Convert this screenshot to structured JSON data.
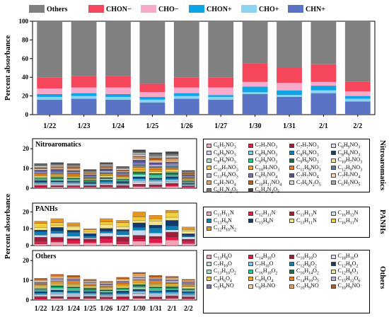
{
  "chart_data": [
    {
      "type": "bar",
      "stacked": true,
      "title": "",
      "ylabel": "Percent absorbance",
      "xlabel": "",
      "ylim": [
        0,
        100
      ],
      "yticks": [
        0,
        20,
        40,
        60,
        80,
        100
      ],
      "grid": false,
      "legend_position": "top",
      "categories": [
        "1/22",
        "1/23",
        "1/24",
        "1/25",
        "1/26",
        "1/27",
        "1/30",
        "1/31",
        "2/1",
        "2/2"
      ],
      "series": [
        {
          "name": "CHN+",
          "color": "#5b73c4",
          "values": [
            16,
            17,
            16,
            13,
            17,
            16,
            22,
            19,
            23,
            14
          ]
        },
        {
          "name": "CHO+",
          "color": "#8ad4f2",
          "values": [
            3,
            3,
            3,
            3,
            3,
            3,
            2,
            2,
            3,
            3
          ]
        },
        {
          "name": "CHON+",
          "color": "#0ea5e6",
          "values": [
            3,
            3,
            3,
            3,
            3,
            2,
            6,
            5,
            5,
            3
          ]
        },
        {
          "name": "CHO−",
          "color": "#f9a9c9",
          "values": [
            6,
            6,
            7,
            5,
            6,
            8,
            5,
            8,
            4,
            5
          ]
        },
        {
          "name": "CHON−",
          "color": "#f5465c",
          "values": [
            12,
            12,
            12,
            9,
            11,
            11,
            20,
            16,
            19,
            10
          ]
        },
        {
          "name": "Others",
          "color": "#808080",
          "values": [
            60,
            59,
            59,
            67,
            60,
            60,
            45,
            50,
            46,
            65
          ]
        }
      ]
    },
    {
      "type": "bar",
      "stacked": true,
      "title": "Nitroaromatics",
      "ylim": [
        0,
        20
      ],
      "yticks": [
        0,
        10,
        20
      ],
      "categories": [
        "1/22",
        "1/23",
        "1/24",
        "1/25",
        "1/26",
        "1/27",
        "1/30",
        "1/31",
        "2/1",
        "2/2"
      ],
      "totals": [
        12.5,
        13,
        12.5,
        9.5,
        13,
        11,
        19.5,
        18,
        18.5,
        9
      ],
      "legend": [
        "C6H5NO3",
        "C7H7NO3",
        "C7H7NO3",
        "C8H9NO3",
        "C8H9NO3",
        "C8H9NO3",
        "C8H9NO3",
        "C8H9NO3",
        "C8H9NO3",
        "C9H9NO3",
        "C9H9NO3",
        "C10H7NO3",
        "C10H7NO3",
        "C10H7NO3",
        "C11H9NO3",
        "C12H9NO3",
        "C13H9NO3",
        "C6H5NO4",
        "C7H7NO4",
        "C7H7NO4",
        "C8H7NO4",
        "C10H11NO4",
        "C7H6N2O5",
        "C6H5NO5",
        "C6H4N2O5",
        "C6H4N2O5"
      ],
      "colors": [
        "#f5a3b5",
        "#e31a4c",
        "#9f1d38",
        "#d9dcf1",
        "#c8d7e8",
        "#7bc8ea",
        "#0c7fb5",
        "#123a6e",
        "#a0e3c4",
        "#1fcb8a",
        "#1b6b46",
        "#f5e38a",
        "#f2d03c",
        "#f1a52b",
        "#e77f1c",
        "#5b7f9c",
        "#bdb6d9",
        "#7c72b6",
        "#57508e",
        "#f7d3b2",
        "#e8a15c",
        "#b75c1d",
        "#d8d8d8",
        "#a8a8a8",
        "#777777",
        "#444444"
      ]
    },
    {
      "type": "bar",
      "stacked": true,
      "title": "PANHs",
      "ylim": [
        0,
        20
      ],
      "yticks": [
        0,
        10,
        20
      ],
      "categories": [
        "1/22",
        "1/23",
        "1/24",
        "1/25",
        "1/26",
        "1/27",
        "1/30",
        "1/31",
        "2/1",
        "2/2"
      ],
      "totals": [
        14.5,
        16,
        13.5,
        10,
        16,
        15,
        20,
        18,
        21,
        11
      ],
      "legend": [
        "C11H11N",
        "C12H11N",
        "C13H13N",
        "C16H13N",
        "C13H9N",
        "C15H9N",
        "C13H11N",
        "C16H11N",
        "C12H10N2"
      ],
      "colors": [
        "#f5a3b5",
        "#e31a4c",
        "#9f1d38",
        "#c7dcee",
        "#0c7fb5",
        "#123a6e",
        "#f5e38a",
        "#f2d03c",
        "#e6931f"
      ]
    },
    {
      "type": "bar",
      "stacked": true,
      "title": "Others",
      "ylim": [
        0,
        20
      ],
      "yticks": [
        0,
        10,
        20
      ],
      "categories": [
        "1/22",
        "1/23",
        "1/24",
        "1/25",
        "1/26",
        "1/27",
        "1/30",
        "1/31",
        "2/1",
        "2/2"
      ],
      "totals": [
        11,
        13,
        12.5,
        10.5,
        9.5,
        11.5,
        14,
        12.5,
        12,
        10.5
      ],
      "legend": [
        "C13H8O",
        "C14H10O",
        "C16H10O",
        "C18H10O",
        "C7H10O",
        "C7H10O",
        "C12H8O2",
        "C12H8O2",
        "C13H10O2",
        "C16H10O2",
        "C16H14O2",
        "C12H8O3",
        "C8H6O4",
        "C9H6O4",
        "C14H10O5",
        "C15H12O6",
        "C5H9NO",
        "C8H7NO",
        "C10H9NO",
        "C10H9NO"
      ],
      "colors": [
        "#f5a3b5",
        "#e31a4c",
        "#9f1d38",
        "#d9dcf1",
        "#c8d7e8",
        "#7bc8ea",
        "#0c7fb5",
        "#123a6e",
        "#a0e3c4",
        "#1fcb8a",
        "#1b6b46",
        "#f5e38a",
        "#f2d03c",
        "#f1a52b",
        "#e77f1c",
        "#bdb6d9",
        "#7c72b6",
        "#f7d3b2",
        "#e8a15c",
        "#b75c1d"
      ]
    }
  ],
  "labels": {
    "shared_ylabel": "Percent absorbance",
    "side_nitro": "Nitroaromatics",
    "side_panhs": "PANHs",
    "side_others": "Others"
  }
}
